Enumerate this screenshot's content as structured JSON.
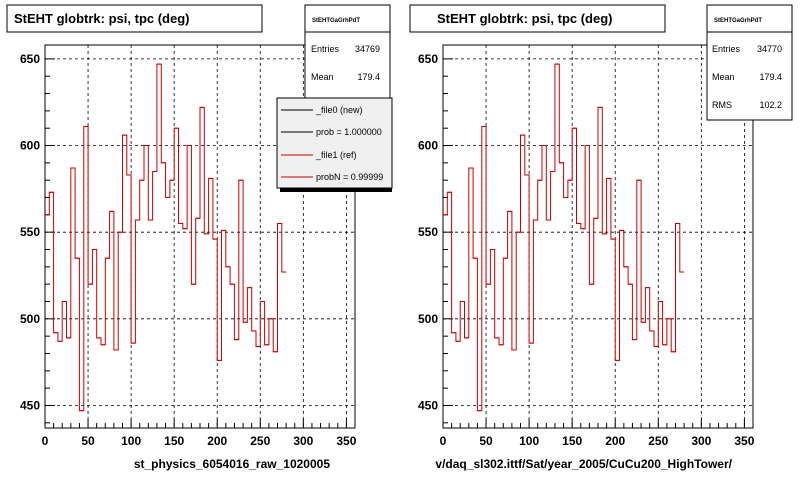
{
  "panels": [
    {
      "title": "StEHT globtrk: psi, tpc (deg)",
      "stats": {
        "name": "StEHTGaGrhPdT",
        "entries_label": "Entries",
        "entries": "34769",
        "mean_label": "Mean",
        "mean": "179.4"
      },
      "legend": {
        "items": [
          {
            "label": "_file0 (new)",
            "color": "#000000"
          },
          {
            "label": "prob = 1.000000",
            "color": "#000000"
          },
          {
            "label": "_file1 (ref)",
            "color": "#cc0000"
          },
          {
            "label": "probN = 0.99999",
            "color": "#cc0000"
          }
        ]
      },
      "xlabel": "st_physics_6054016_raw_1020005"
    },
    {
      "title": "StEHT globtrk: psi, tpc (deg)",
      "stats": {
        "name": "StEHTGaGrhPdT",
        "entries_label": "Entries",
        "entries": "34770",
        "mean_label": "Mean",
        "mean": "179.4",
        "rms_label": "RMS",
        "rms": "102.2"
      },
      "xlabel": "v/daq_sl302.ittf/Sat/year_2005/CuCu200_HighTower/"
    }
  ],
  "chart_data": {
    "type": "histogram-step",
    "xlim": [
      0,
      360
    ],
    "ylim": [
      437,
      658
    ],
    "xticks": [
      0,
      50,
      100,
      150,
      200,
      250,
      300,
      350
    ],
    "yticks": [
      450,
      500,
      550,
      600,
      650
    ],
    "grid": true,
    "bin_width": 5,
    "series": [
      {
        "name": "_file1 (ref)",
        "color": "#cc0000",
        "values": [
          560,
          573,
          492,
          487,
          510,
          489,
          587,
          535,
          447,
          611,
          520,
          540,
          489,
          485,
          535,
          562,
          482,
          550,
          606,
          583,
          486,
          557,
          580,
          600,
          557,
          585,
          647,
          590,
          570,
          580,
          610,
          555,
          552,
          600,
          520,
          558,
          622,
          549,
          581,
          546,
          476,
          551,
          530,
          520,
          488,
          580,
          498,
          518,
          493,
          484,
          510,
          485,
          500,
          481,
          555,
          527
        ]
      }
    ]
  }
}
